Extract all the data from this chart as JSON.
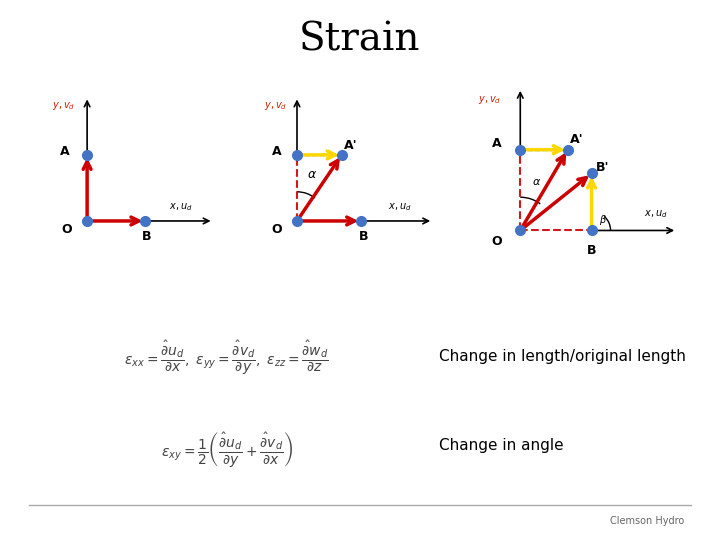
{
  "title": "Strain",
  "title_fontsize": 28,
  "bg_color": "#ffffff",
  "text_change_length": "Change in length/original length",
  "text_change_angle": "Change in angle",
  "text_fontsize": 11,
  "clemson_text": "Clemson Hydro"
}
